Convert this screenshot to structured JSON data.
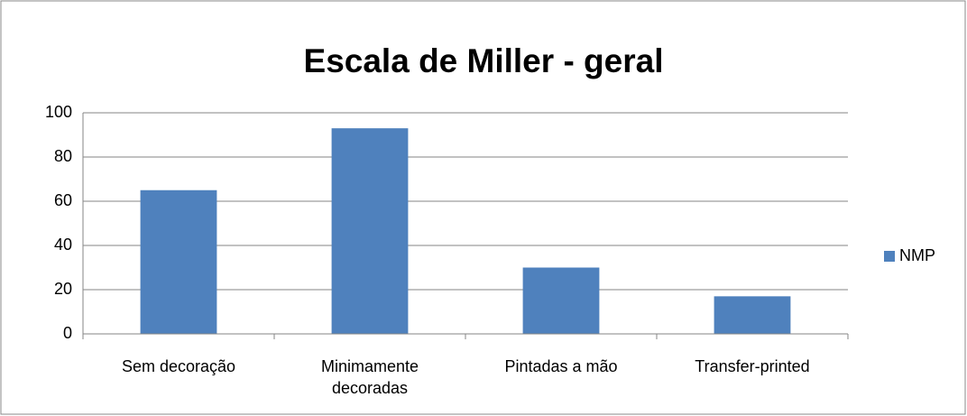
{
  "chart_data": {
    "type": "bar",
    "title": "Escala de Miller - geral",
    "categories": [
      "Sem decoração",
      "Minimamente decoradas",
      "Pintadas a mão",
      "Transfer-printed"
    ],
    "series": [
      {
        "name": "NMP",
        "color": "#4f81bd",
        "values": [
          65,
          93,
          30,
          17
        ]
      }
    ],
    "ylim": [
      0,
      100
    ],
    "yticks": [
      0,
      20,
      40,
      60,
      80,
      100
    ],
    "grid": true,
    "legend": "right"
  }
}
